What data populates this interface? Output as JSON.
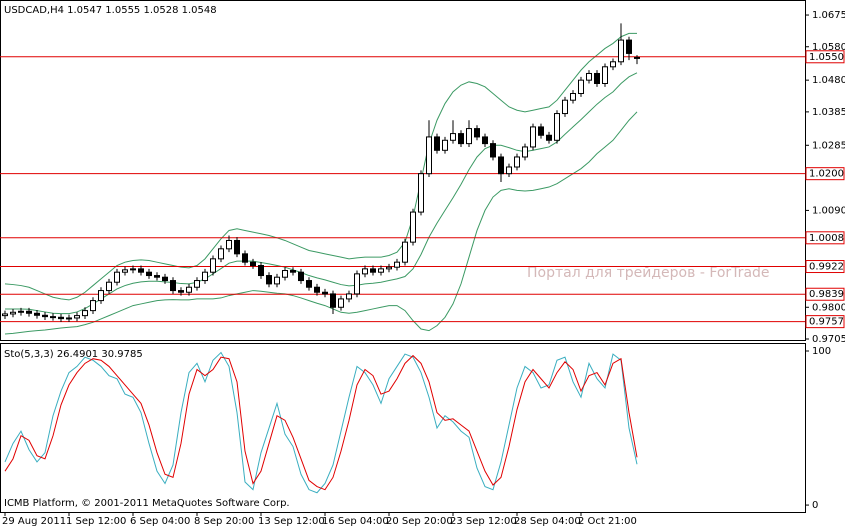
{
  "chart_data": [
    {
      "type": "candlestick",
      "title": "USDCAD,H4  1.0547 1.0555 1.0528 1.0548",
      "watermark": "Портал для трейдеров - ForTrade",
      "categories": [
        "29 Aug 2011",
        null,
        null,
        null,
        null,
        null,
        null,
        null,
        "1 Sep 12:00",
        null,
        null,
        null,
        null,
        null,
        null,
        null,
        "6 Sep 04:00",
        null,
        null,
        null,
        null,
        null,
        null,
        null,
        "8 Sep 20:00",
        null,
        null,
        null,
        null,
        null,
        null,
        null,
        "13 Sep 12:00",
        null,
        null,
        null,
        null,
        null,
        null,
        null,
        "16 Sep 04:00",
        null,
        null,
        null,
        null,
        null,
        null,
        null,
        "20 Sep 20:00",
        null,
        null,
        null,
        null,
        null,
        null,
        null,
        "23 Sep 12:00",
        null,
        null,
        null,
        null,
        null,
        null,
        null,
        "28 Sep 04:00",
        null,
        null,
        null,
        null,
        null,
        null,
        null,
        "2 Oct 21:00",
        null,
        null,
        null,
        null,
        null,
        null,
        null
      ],
      "open": [
        0.9775,
        0.978,
        0.9785,
        0.9788,
        0.9782,
        0.9776,
        0.9772,
        0.977,
        0.9766,
        0.9768,
        0.9775,
        0.979,
        0.982,
        0.985,
        0.9875,
        0.9905,
        0.9912,
        0.9915,
        0.9905,
        0.9895,
        0.989,
        0.988,
        0.985,
        0.9845,
        0.986,
        0.988,
        0.9905,
        0.9945,
        0.9975,
        1.0,
        0.996,
        0.9935,
        0.9925,
        0.9895,
        0.987,
        0.989,
        0.991,
        0.9905,
        0.988,
        0.986,
        0.9845,
        0.984,
        0.98,
        0.9825,
        0.984,
        0.99,
        0.9915,
        0.9905,
        0.9915,
        0.992,
        0.9935,
        0.9995,
        1.0085,
        1.02,
        1.031,
        1.027,
        1.03,
        1.032,
        1.029,
        1.0335,
        1.031,
        1.029,
        1.025,
        1.02,
        1.022,
        1.025,
        1.028,
        1.034,
        1.0315,
        1.03,
        1.038,
        1.042,
        1.044,
        1.048,
        1.05,
        1.047,
        1.052,
        1.0535,
        1.06,
        1.0547
      ],
      "high": [
        0.979,
        0.9795,
        0.9798,
        0.9798,
        0.9792,
        0.9786,
        0.9782,
        0.978,
        0.9778,
        0.9785,
        0.98,
        0.983,
        0.986,
        0.9885,
        0.9915,
        0.9922,
        0.9925,
        0.9925,
        0.9915,
        0.9905,
        0.99,
        0.989,
        0.986,
        0.987,
        0.989,
        0.9915,
        0.9955,
        0.9985,
        1.0015,
        1.001,
        0.997,
        0.9945,
        0.9935,
        0.9905,
        0.99,
        0.992,
        0.992,
        0.9915,
        0.989,
        0.987,
        0.9855,
        0.985,
        0.9835,
        0.985,
        0.991,
        0.9925,
        0.9925,
        0.9925,
        0.993,
        0.9945,
        1.0005,
        1.0095,
        1.021,
        1.036,
        1.032,
        1.031,
        1.036,
        1.033,
        1.036,
        1.0345,
        1.032,
        1.03,
        1.026,
        1.023,
        1.026,
        1.029,
        1.035,
        1.035,
        1.0325,
        1.039,
        1.043,
        1.045,
        1.049,
        1.051,
        1.051,
        1.053,
        1.0545,
        1.065,
        1.061,
        1.0555
      ],
      "low": [
        0.9765,
        0.977,
        0.9775,
        0.9772,
        0.9766,
        0.9762,
        0.976,
        0.9756,
        0.9756,
        0.9758,
        0.9765,
        0.978,
        0.981,
        0.984,
        0.9865,
        0.9895,
        0.9902,
        0.9895,
        0.9885,
        0.988,
        0.987,
        0.984,
        0.9835,
        0.9835,
        0.985,
        0.987,
        0.9895,
        0.9935,
        0.9965,
        0.995,
        0.9925,
        0.9915,
        0.9885,
        0.986,
        0.986,
        0.988,
        0.9895,
        0.987,
        0.985,
        0.9835,
        0.983,
        0.978,
        0.979,
        0.9815,
        0.983,
        0.989,
        0.9895,
        0.9895,
        0.9905,
        0.991,
        0.9925,
        0.9985,
        1.0075,
        1.019,
        1.026,
        1.026,
        1.029,
        1.028,
        1.028,
        1.03,
        1.028,
        1.024,
        1.0175,
        1.019,
        1.021,
        1.024,
        1.027,
        1.0305,
        1.029,
        1.029,
        1.037,
        1.041,
        1.043,
        1.047,
        1.046,
        1.046,
        1.051,
        1.0525,
        1.054,
        1.0528
      ],
      "close": [
        0.978,
        0.9785,
        0.9788,
        0.9782,
        0.9776,
        0.9772,
        0.977,
        0.9766,
        0.9768,
        0.9775,
        0.979,
        0.982,
        0.985,
        0.9875,
        0.9905,
        0.9912,
        0.9915,
        0.9905,
        0.9895,
        0.989,
        0.988,
        0.985,
        0.9845,
        0.986,
        0.988,
        0.9905,
        0.9945,
        0.9975,
        1.0,
        0.996,
        0.9935,
        0.9925,
        0.9895,
        0.987,
        0.989,
        0.991,
        0.9905,
        0.988,
        0.986,
        0.9845,
        0.984,
        0.98,
        0.9825,
        0.984,
        0.99,
        0.9915,
        0.9905,
        0.9915,
        0.992,
        0.9935,
        0.9995,
        1.0085,
        1.02,
        1.031,
        1.027,
        1.03,
        1.032,
        1.029,
        1.0335,
        1.031,
        1.029,
        1.025,
        1.02,
        1.022,
        1.025,
        1.028,
        1.034,
        1.0315,
        1.03,
        1.038,
        1.042,
        1.044,
        1.048,
        1.05,
        1.047,
        1.052,
        1.0535,
        1.06,
        1.056,
        1.0548
      ],
      "bands": {
        "color": "#3c9a64",
        "upper": [
          0.987,
          0.9868,
          0.9865,
          0.986,
          0.985,
          0.984,
          0.983,
          0.9825,
          0.9822,
          0.983,
          0.9845,
          0.9865,
          0.9885,
          0.9905,
          0.9925,
          0.9935,
          0.994,
          0.9942,
          0.994,
          0.9935,
          0.993,
          0.9925,
          0.992,
          0.9918,
          0.9925,
          0.9945,
          0.9975,
          1.0005,
          1.003,
          1.0035,
          1.003,
          1.0025,
          1.002,
          1.0015,
          1.0008,
          1.0,
          0.999,
          0.998,
          0.997,
          0.9965,
          0.996,
          0.9955,
          0.995,
          0.9945,
          0.9948,
          0.995,
          0.995,
          0.995,
          0.9955,
          0.9965,
          0.9995,
          1.007,
          1.018,
          1.029,
          1.036,
          1.041,
          1.0445,
          1.0465,
          1.0475,
          1.047,
          1.046,
          1.044,
          1.042,
          1.04,
          1.039,
          1.0385,
          1.039,
          1.0395,
          1.04,
          1.042,
          1.045,
          1.048,
          1.051,
          1.0535,
          1.0555,
          1.0575,
          1.059,
          1.061,
          1.062,
          1.062
        ],
        "middle": [
          0.9795,
          0.9795,
          0.9795,
          0.9794,
          0.979,
          0.9786,
          0.9782,
          0.9781,
          0.9781,
          0.9786,
          0.9796,
          0.981,
          0.9825,
          0.984,
          0.9855,
          0.9865,
          0.9872,
          0.9876,
          0.9878,
          0.9878,
          0.9876,
          0.9874,
          0.9871,
          0.987,
          0.9875,
          0.9885,
          0.99,
          0.9916,
          0.9932,
          0.9938,
          0.9938,
          0.9938,
          0.9934,
          0.993,
          0.9925,
          0.992,
          0.9912,
          0.9904,
          0.9895,
          0.9888,
          0.9882,
          0.9875,
          0.9868,
          0.9864,
          0.9866,
          0.987,
          0.9872,
          0.9875,
          0.988,
          0.9885,
          0.9892,
          0.9915,
          0.9958,
          1.001,
          1.0052,
          1.009,
          1.0128,
          1.0168,
          1.0212,
          1.025,
          1.0275,
          1.0285,
          1.0285,
          1.0278,
          1.027,
          1.0266,
          1.027,
          1.0275,
          1.028,
          1.0295,
          1.0318,
          1.034,
          1.0362,
          1.0385,
          1.0408,
          1.0428,
          1.0445,
          1.047,
          1.049,
          1.0502
        ],
        "lower": [
          0.972,
          0.9722,
          0.9725,
          0.9728,
          0.973,
          0.9732,
          0.9735,
          0.9738,
          0.974,
          0.9742,
          0.9748,
          0.9755,
          0.9765,
          0.9775,
          0.9785,
          0.9795,
          0.9805,
          0.981,
          0.9815,
          0.982,
          0.9822,
          0.9823,
          0.9822,
          0.9822,
          0.9825,
          0.9825,
          0.9825,
          0.9828,
          0.9835,
          0.984,
          0.9845,
          0.985,
          0.9848,
          0.9845,
          0.9842,
          0.984,
          0.9835,
          0.9828,
          0.982,
          0.9812,
          0.9805,
          0.9795,
          0.9785,
          0.9782,
          0.9785,
          0.979,
          0.9795,
          0.98,
          0.9805,
          0.9805,
          0.979,
          0.976,
          0.9735,
          0.973,
          0.9745,
          0.977,
          0.981,
          0.987,
          0.995,
          1.003,
          1.009,
          1.013,
          1.015,
          1.0155,
          1.015,
          1.0148,
          1.015,
          1.0155,
          1.016,
          1.017,
          1.0185,
          1.02,
          1.0215,
          1.0235,
          1.026,
          1.028,
          1.03,
          1.033,
          1.036,
          1.0385
        ]
      },
      "levels": [
        {
          "value": 1.055,
          "label": "1.0550"
        },
        {
          "value": 1.02,
          "label": "1.0200"
        },
        1.0008,
        0.9922,
        0.9839,
        0.9757
      ],
      "level_color": "#e00000",
      "ylim": [
        0.9702,
        1.072
      ],
      "yticks": [
        1.0675,
        {
          "value": 1.058,
          "label": "1.0580"
        },
        {
          "value": 1.048,
          "label": "1.0480"
        },
        1.0385,
        1.0285,
        {
          "value": 1.009,
          "label": "1.0090"
        },
        {
          "value": 0.98,
          "label": "0.9800"
        },
        0.9705
      ]
    },
    {
      "type": "line",
      "title": "Sto(5,3,3) 26.4901 30.9785",
      "footer": "ICMB Platform, © 2001-2011 MetaQuotes Software Corp.",
      "ylim": [
        -4.5,
        105.2
      ],
      "yticks": [
        0,
        100
      ],
      "series": [
        {
          "color": "#3aaec0",
          "values": [
            28,
            40,
            48,
            36,
            28,
            34,
            58,
            74,
            86,
            90,
            96,
            94,
            90,
            84,
            82,
            72,
            70,
            60,
            40,
            22,
            14,
            26,
            60,
            86,
            92,
            80,
            94,
            99,
            90,
            60,
            15,
            10,
            34,
            50,
            66,
            46,
            38,
            20,
            10,
            8,
            14,
            26,
            48,
            70,
            90,
            86,
            78,
            66,
            82,
            90,
            98,
            96,
            86,
            70,
            50,
            58,
            54,
            48,
            44,
            24,
            12,
            10,
            28,
            52,
            76,
            90,
            86,
            76,
            78,
            94,
            96,
            80,
            70,
            92,
            82,
            76,
            98,
            94,
            50,
            26.4901
          ]
        },
        {
          "color": "#e00000",
          "values": [
            22,
            30,
            45,
            42,
            32,
            30,
            45,
            65,
            78,
            86,
            92,
            95,
            94,
            90,
            84,
            78,
            72,
            66,
            52,
            34,
            20,
            18,
            40,
            72,
            88,
            84,
            88,
            96,
            95,
            80,
            35,
            14,
            22,
            40,
            58,
            55,
            44,
            30,
            16,
            12,
            10,
            18,
            35,
            55,
            78,
            88,
            84,
            72,
            74,
            82,
            92,
            97,
            92,
            80,
            60,
            55,
            56,
            52,
            48,
            35,
            22,
            13,
            18,
            38,
            62,
            80,
            88,
            82,
            76,
            86,
            93,
            88,
            74,
            84,
            86,
            78,
            92,
            95,
            60,
            30.9785
          ]
        }
      ]
    }
  ]
}
